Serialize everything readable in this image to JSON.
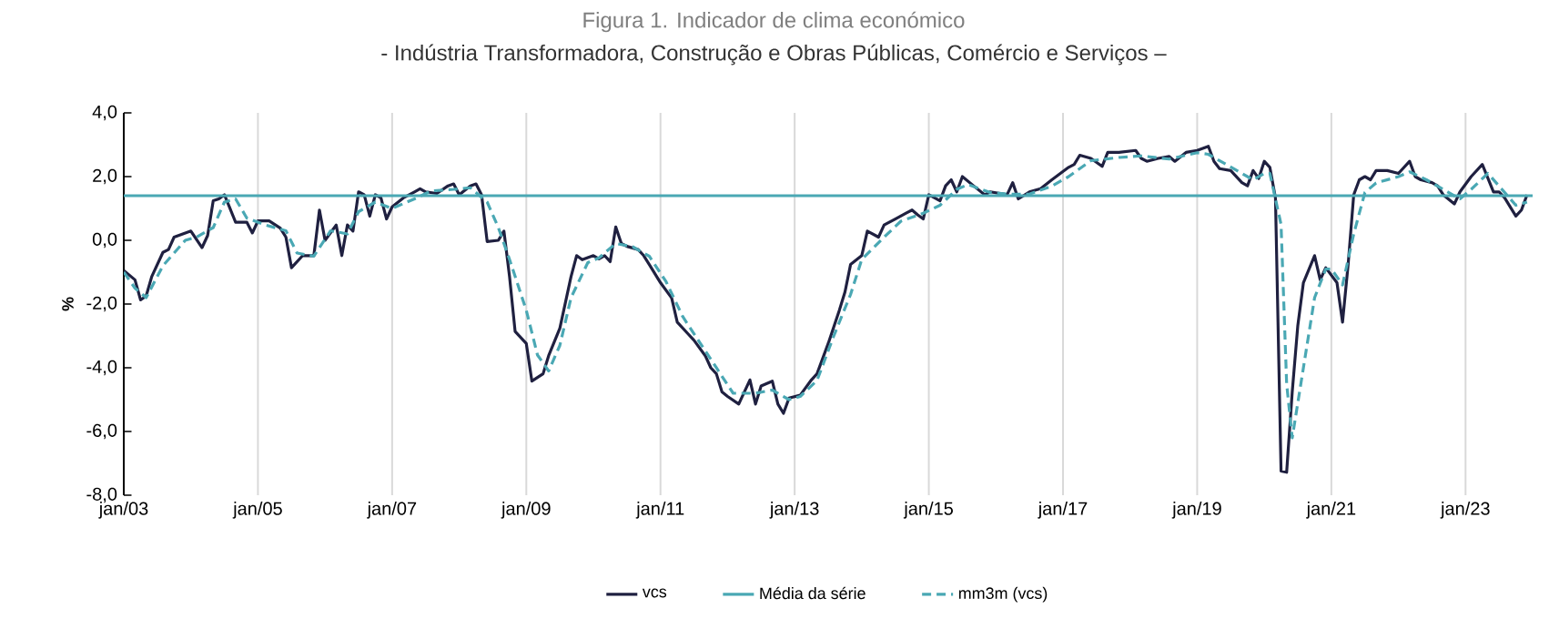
{
  "chart_data": {
    "type": "line",
    "title": "Figura 1. Indicador de clima económico",
    "subtitle": "- Indústria Transformadora, Construção e Obras Públicas, Comércio e Serviços –",
    "ylabel": "%",
    "xlim": [
      "2003-01",
      "2024-01"
    ],
    "ylim": [
      -8,
      4
    ],
    "xticks": [
      {
        "value": "2003-01",
        "label": "jan/03"
      },
      {
        "value": "2005-01",
        "label": "jan/05"
      },
      {
        "value": "2007-01",
        "label": "jan/07"
      },
      {
        "value": "2009-01",
        "label": "jan/09"
      },
      {
        "value": "2011-01",
        "label": "jan/11"
      },
      {
        "value": "2013-01",
        "label": "jan/13"
      },
      {
        "value": "2015-01",
        "label": "jan/15"
      },
      {
        "value": "2017-01",
        "label": "jan/17"
      },
      {
        "value": "2019-01",
        "label": "jan/19"
      },
      {
        "value": "2021-01",
        "label": "jan/21"
      },
      {
        "value": "2023-01",
        "label": "jan/23"
      }
    ],
    "yticks": [
      {
        "value": -8,
        "label": "-8,0"
      },
      {
        "value": -6,
        "label": "-6,0"
      },
      {
        "value": -4,
        "label": "-4,0"
      },
      {
        "value": -2,
        "label": "-2,0"
      },
      {
        "value": 0,
        "label": "0,0"
      },
      {
        "value": 2,
        "label": "2,0"
      },
      {
        "value": 4,
        "label": "4,0"
      }
    ],
    "grid": "x",
    "legend": "bottom",
    "series": [
      {
        "name": "vcs",
        "color": "#1f2040",
        "line_style": "solid",
        "x": [
          "2003-01",
          "2003-03",
          "2003-04",
          "2003-05",
          "2003-06",
          "2003-08",
          "2003-09",
          "2003-10",
          "2003-12",
          "2004-01",
          "2004-03",
          "2004-04",
          "2004-05",
          "2004-06",
          "2004-07",
          "2004-09",
          "2004-11",
          "2004-12",
          "2005-01",
          "2005-03",
          "2005-05",
          "2005-06",
          "2005-07",
          "2005-09",
          "2005-11",
          "2005-12",
          "2006-01",
          "2006-03",
          "2006-04",
          "2006-05",
          "2006-06",
          "2006-07",
          "2006-08",
          "2006-09",
          "2006-10",
          "2006-11",
          "2006-12",
          "2007-01",
          "2007-03",
          "2007-05",
          "2007-06",
          "2007-07",
          "2007-09",
          "2007-11",
          "2007-12",
          "2008-01",
          "2008-03",
          "2008-04",
          "2008-05",
          "2008-06",
          "2008-08",
          "2008-09",
          "2008-10",
          "2008-11",
          "2009-01",
          "2009-02",
          "2009-04",
          "2009-05",
          "2009-07",
          "2009-09",
          "2009-10",
          "2009-11",
          "2010-01",
          "2010-02",
          "2010-03",
          "2010-04",
          "2010-05",
          "2010-06",
          "2010-07",
          "2010-09",
          "2010-10",
          "2010-11",
          "2011-01",
          "2011-03",
          "2011-04",
          "2011-06",
          "2011-07",
          "2011-09",
          "2011-10",
          "2011-11",
          "2011-12",
          "2012-01",
          "2012-03",
          "2012-05",
          "2012-06",
          "2012-07",
          "2012-09",
          "2012-10",
          "2012-11",
          "2012-12",
          "2013-02",
          "2013-04",
          "2013-05",
          "2013-07",
          "2013-09",
          "2013-10",
          "2013-11",
          "2014-01",
          "2014-02",
          "2014-04",
          "2014-05",
          "2014-07",
          "2014-09",
          "2014-10",
          "2014-11",
          "2014-12",
          "2015-01",
          "2015-03",
          "2015-04",
          "2015-05",
          "2015-06",
          "2015-07",
          "2015-09",
          "2015-11",
          "2015-12",
          "2016-03",
          "2016-04",
          "2016-05",
          "2016-07",
          "2016-09",
          "2016-11",
          "2017-02",
          "2017-03",
          "2017-04",
          "2017-06",
          "2017-08",
          "2017-09",
          "2017-11",
          "2018-02",
          "2018-03",
          "2018-04",
          "2018-06",
          "2018-08",
          "2018-09",
          "2018-11",
          "2019-01",
          "2019-03",
          "2019-04",
          "2019-05",
          "2019-07",
          "2019-09",
          "2019-10",
          "2019-11",
          "2019-12",
          "2020-01",
          "2020-02",
          "2020-03",
          "2020-04",
          "2020-05",
          "2020-06",
          "2020-07",
          "2020-08",
          "2020-10",
          "2020-11",
          "2020-12",
          "2021-02",
          "2021-03",
          "2021-04",
          "2021-05",
          "2021-06",
          "2021-07",
          "2021-08",
          "2021-09",
          "2021-11",
          "2022-01",
          "2022-03",
          "2022-04",
          "2022-05",
          "2022-07",
          "2022-08",
          "2022-09",
          "2022-11",
          "2022-12",
          "2023-02",
          "2023-04",
          "2023-06",
          "2023-07",
          "2023-08",
          "2023-10",
          "2023-11",
          "2023-12"
        ],
        "values": [
          -0.95,
          -1.24,
          -1.87,
          -1.75,
          -1.14,
          -0.38,
          -0.29,
          0.1,
          0.23,
          0.29,
          -0.23,
          0.15,
          1.24,
          1.3,
          1.43,
          0.57,
          0.57,
          0.23,
          0.61,
          0.61,
          0.38,
          0.1,
          -0.86,
          -0.48,
          -0.48,
          0.95,
          0.0,
          0.48,
          -0.48,
          0.48,
          0.29,
          1.52,
          1.43,
          0.76,
          1.43,
          1.33,
          0.67,
          1.05,
          1.33,
          1.52,
          1.62,
          1.52,
          1.47,
          1.71,
          1.77,
          1.43,
          1.71,
          1.77,
          1.43,
          -0.04,
          0.0,
          0.29,
          -1.14,
          -2.86,
          -3.24,
          -4.42,
          -4.19,
          -3.62,
          -2.76,
          -1.14,
          -0.48,
          -0.61,
          -0.48,
          -0.58,
          -0.48,
          -0.67,
          0.42,
          -0.1,
          -0.19,
          -0.29,
          -0.48,
          -0.76,
          -1.33,
          -1.81,
          -2.57,
          -2.95,
          -3.14,
          -3.62,
          -4.0,
          -4.19,
          -4.76,
          -4.9,
          -5.14,
          -4.38,
          -5.14,
          -4.57,
          -4.42,
          -5.14,
          -5.43,
          -4.95,
          -4.86,
          -4.38,
          -4.19,
          -3.24,
          -2.19,
          -1.62,
          -0.76,
          -0.48,
          0.29,
          0.1,
          0.48,
          0.67,
          0.86,
          0.95,
          0.8,
          0.67,
          1.43,
          1.24,
          1.71,
          1.9,
          1.52,
          2.0,
          1.71,
          1.43,
          1.52,
          1.43,
          1.81,
          1.3,
          1.52,
          1.62,
          1.9,
          2.29,
          2.38,
          2.67,
          2.57,
          2.32,
          2.76,
          2.76,
          2.82,
          2.57,
          2.48,
          2.57,
          2.63,
          2.48,
          2.76,
          2.82,
          2.95,
          2.48,
          2.25,
          2.19,
          1.81,
          1.71,
          2.19,
          1.94,
          2.48,
          2.29,
          1.33,
          -7.24,
          -7.28,
          -4.76,
          -2.67,
          -1.33,
          -0.48,
          -1.24,
          -0.86,
          -1.33,
          -2.57,
          -0.76,
          1.43,
          1.9,
          2.0,
          1.9,
          2.19,
          2.19,
          2.1,
          2.48,
          2.0,
          1.9,
          1.81,
          1.71,
          1.43,
          1.14,
          1.52,
          2.0,
          2.38,
          1.52,
          1.52,
          1.33,
          0.76,
          0.95,
          1.43
        ]
      },
      {
        "name": "Média da série",
        "color": "#4aa8b4",
        "line_style": "solid",
        "x": [
          "2003-01",
          "2024-01"
        ],
        "values": [
          1.4,
          1.4
        ]
      },
      {
        "name": "mm3m (vcs)",
        "color": "#4aa8b4",
        "line_style": "dashed",
        "x": [
          "2003-01",
          "2003-03",
          "2003-05",
          "2003-08",
          "2003-12",
          "2004-02",
          "2004-05",
          "2004-07",
          "2004-09",
          "2004-11",
          "2005-02",
          "2005-06",
          "2005-08",
          "2005-11",
          "2006-02",
          "2006-05",
          "2006-07",
          "2006-10",
          "2007-01",
          "2007-05",
          "2007-08",
          "2007-12",
          "2008-03",
          "2008-06",
          "2008-08",
          "2008-10",
          "2009-01",
          "2009-03",
          "2009-05",
          "2009-07",
          "2009-09",
          "2009-12",
          "2010-02",
          "2010-05",
          "2010-08",
          "2010-11",
          "2011-02",
          "2011-05",
          "2011-08",
          "2011-11",
          "2012-02",
          "2012-06",
          "2012-09",
          "2012-12",
          "2013-02",
          "2013-05",
          "2013-08",
          "2013-11",
          "2014-01",
          "2014-05",
          "2014-08",
          "2014-12",
          "2015-03",
          "2015-06",
          "2015-08",
          "2015-12",
          "2016-03",
          "2016-07",
          "2016-11",
          "2017-02",
          "2017-06",
          "2017-11",
          "2018-03",
          "2018-08",
          "2019-01",
          "2019-03",
          "2019-07",
          "2019-11",
          "2020-01",
          "2020-02",
          "2020-04",
          "2020-05",
          "2020-06",
          "2020-08",
          "2020-10",
          "2020-12",
          "2021-01",
          "2021-03",
          "2021-05",
          "2021-07",
          "2021-09",
          "2022-01",
          "2022-03",
          "2022-06",
          "2022-09",
          "2022-12",
          "2023-02",
          "2023-05",
          "2023-07",
          "2023-10",
          "2023-12"
        ],
        "values": [
          -1.0,
          -1.5,
          -1.8,
          -0.8,
          0.0,
          0.1,
          0.4,
          1.2,
          1.3,
          0.7,
          0.5,
          0.3,
          -0.4,
          -0.5,
          0.3,
          0.2,
          0.9,
          1.2,
          1.0,
          1.3,
          1.55,
          1.6,
          1.65,
          1.2,
          0.4,
          -0.6,
          -2.2,
          -3.6,
          -4.1,
          -3.3,
          -1.8,
          -0.7,
          -0.55,
          -0.1,
          -0.2,
          -0.5,
          -1.3,
          -2.4,
          -3.2,
          -4.0,
          -4.8,
          -4.8,
          -4.7,
          -5.0,
          -4.9,
          -4.4,
          -3.0,
          -1.7,
          -0.6,
          0.1,
          0.6,
          0.85,
          1.1,
          1.6,
          1.75,
          1.5,
          1.45,
          1.45,
          1.7,
          2.0,
          2.5,
          2.6,
          2.65,
          2.55,
          2.75,
          2.7,
          2.3,
          1.9,
          2.1,
          2.1,
          0.5,
          -4.5,
          -6.2,
          -4.0,
          -1.8,
          -0.9,
          -0.9,
          -1.4,
          0.2,
          1.5,
          1.8,
          2.0,
          2.15,
          1.9,
          1.6,
          1.3,
          1.6,
          2.1,
          1.7,
          1.1,
          1.2
        ]
      }
    ]
  }
}
